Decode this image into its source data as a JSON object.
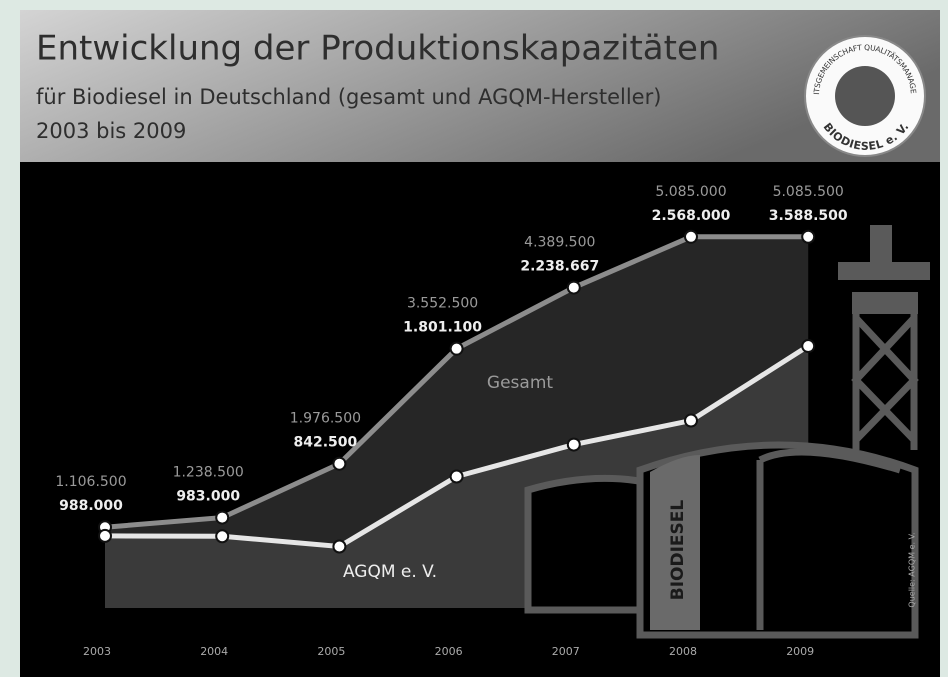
{
  "chart_data": {
    "type": "line",
    "title": "Entwicklung der Produktionskapazitäten",
    "subtitle": "für Biodiesel in Deutschland (gesamt und AGQM-Hersteller)",
    "period": "2003 bis 2009",
    "categories": [
      "2003",
      "2004",
      "2005",
      "2006",
      "2007",
      "2008",
      "2009"
    ],
    "series": [
      {
        "name": "Gesamt",
        "color": "#8c8c8c",
        "values": [
          1106500,
          1238500,
          1976500,
          3552500,
          4389500,
          5085000,
          5085500
        ],
        "value_labels": [
          "1.106.500",
          "1.238.500",
          "1.976.500",
          "3.552.500",
          "4.389.500",
          "5.085.000",
          "5.085.500"
        ]
      },
      {
        "name": "AGQM e. V.",
        "color": "#e6e6e6",
        "values": [
          988000,
          983000,
          842500,
          1801100,
          2238667,
          2568000,
          3588500
        ],
        "value_labels": [
          "988.000",
          "983.000",
          "842.500",
          "1.801.100",
          "2.238.667",
          "2.568.000",
          "3.588.500"
        ]
      }
    ],
    "ylim": [
      0,
      6000000
    ],
    "tank_label": "BIODIESEL",
    "source": "Quelle: AGQM e. V.",
    "logo": {
      "ring_text": "ARBEITSGEMEINSCHAFT QUALITÄTSMANAGEMENT",
      "name": "BIODIESEL e. V."
    }
  }
}
